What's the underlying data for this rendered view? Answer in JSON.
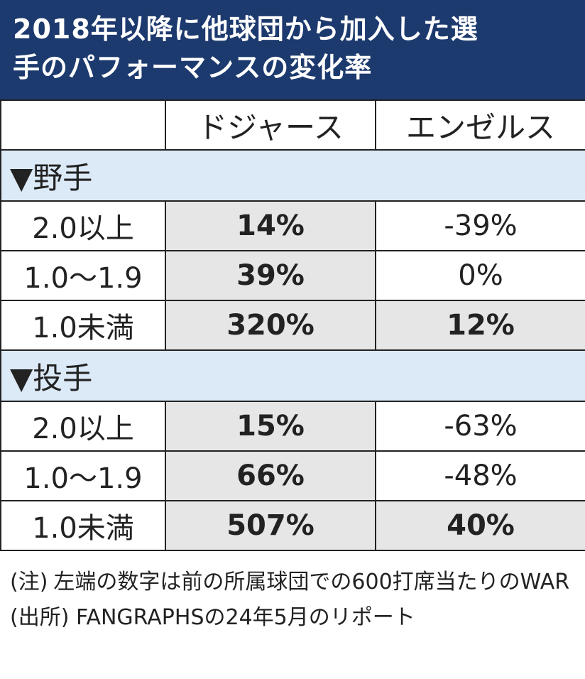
{
  "title": {
    "line1": "2018年以降に他球団から加入した選",
    "line2": "手のパフォーマンスの変化率"
  },
  "chart_data": {
    "type": "table",
    "columns": [
      "",
      "ドジャース",
      "エンゼルス"
    ],
    "sections": [
      {
        "label": "▼野手",
        "rows": [
          {
            "label": "2.0以上",
            "dodgers": "14%",
            "angels": "-39%",
            "angels_highlight": false
          },
          {
            "label": "1.0〜1.9",
            "dodgers": "39%",
            "angels": "0%",
            "angels_highlight": false
          },
          {
            "label": "1.0未満",
            "dodgers": "320%",
            "angels": "12%",
            "angels_highlight": true
          }
        ]
      },
      {
        "label": "▼投手",
        "rows": [
          {
            "label": "2.0以上",
            "dodgers": "15%",
            "angels": "-63%",
            "angels_highlight": false
          },
          {
            "label": "1.0〜1.9",
            "dodgers": "66%",
            "angels": "-48%",
            "angels_highlight": false
          },
          {
            "label": "1.0未満",
            "dodgers": "507%",
            "angels": "40%",
            "angels_highlight": true
          }
        ]
      }
    ]
  },
  "notes": {
    "note_tag": "(注)",
    "note_text": "左端の数字は前の所属球団での600打席当たりのWAR",
    "source": "(出所) FANGRAPHSの24年5月のリポート"
  },
  "colors": {
    "header_bg": "#1d3a6e",
    "section_bg": "#dce9f7",
    "highlight_bg": "#e6e6e6"
  }
}
